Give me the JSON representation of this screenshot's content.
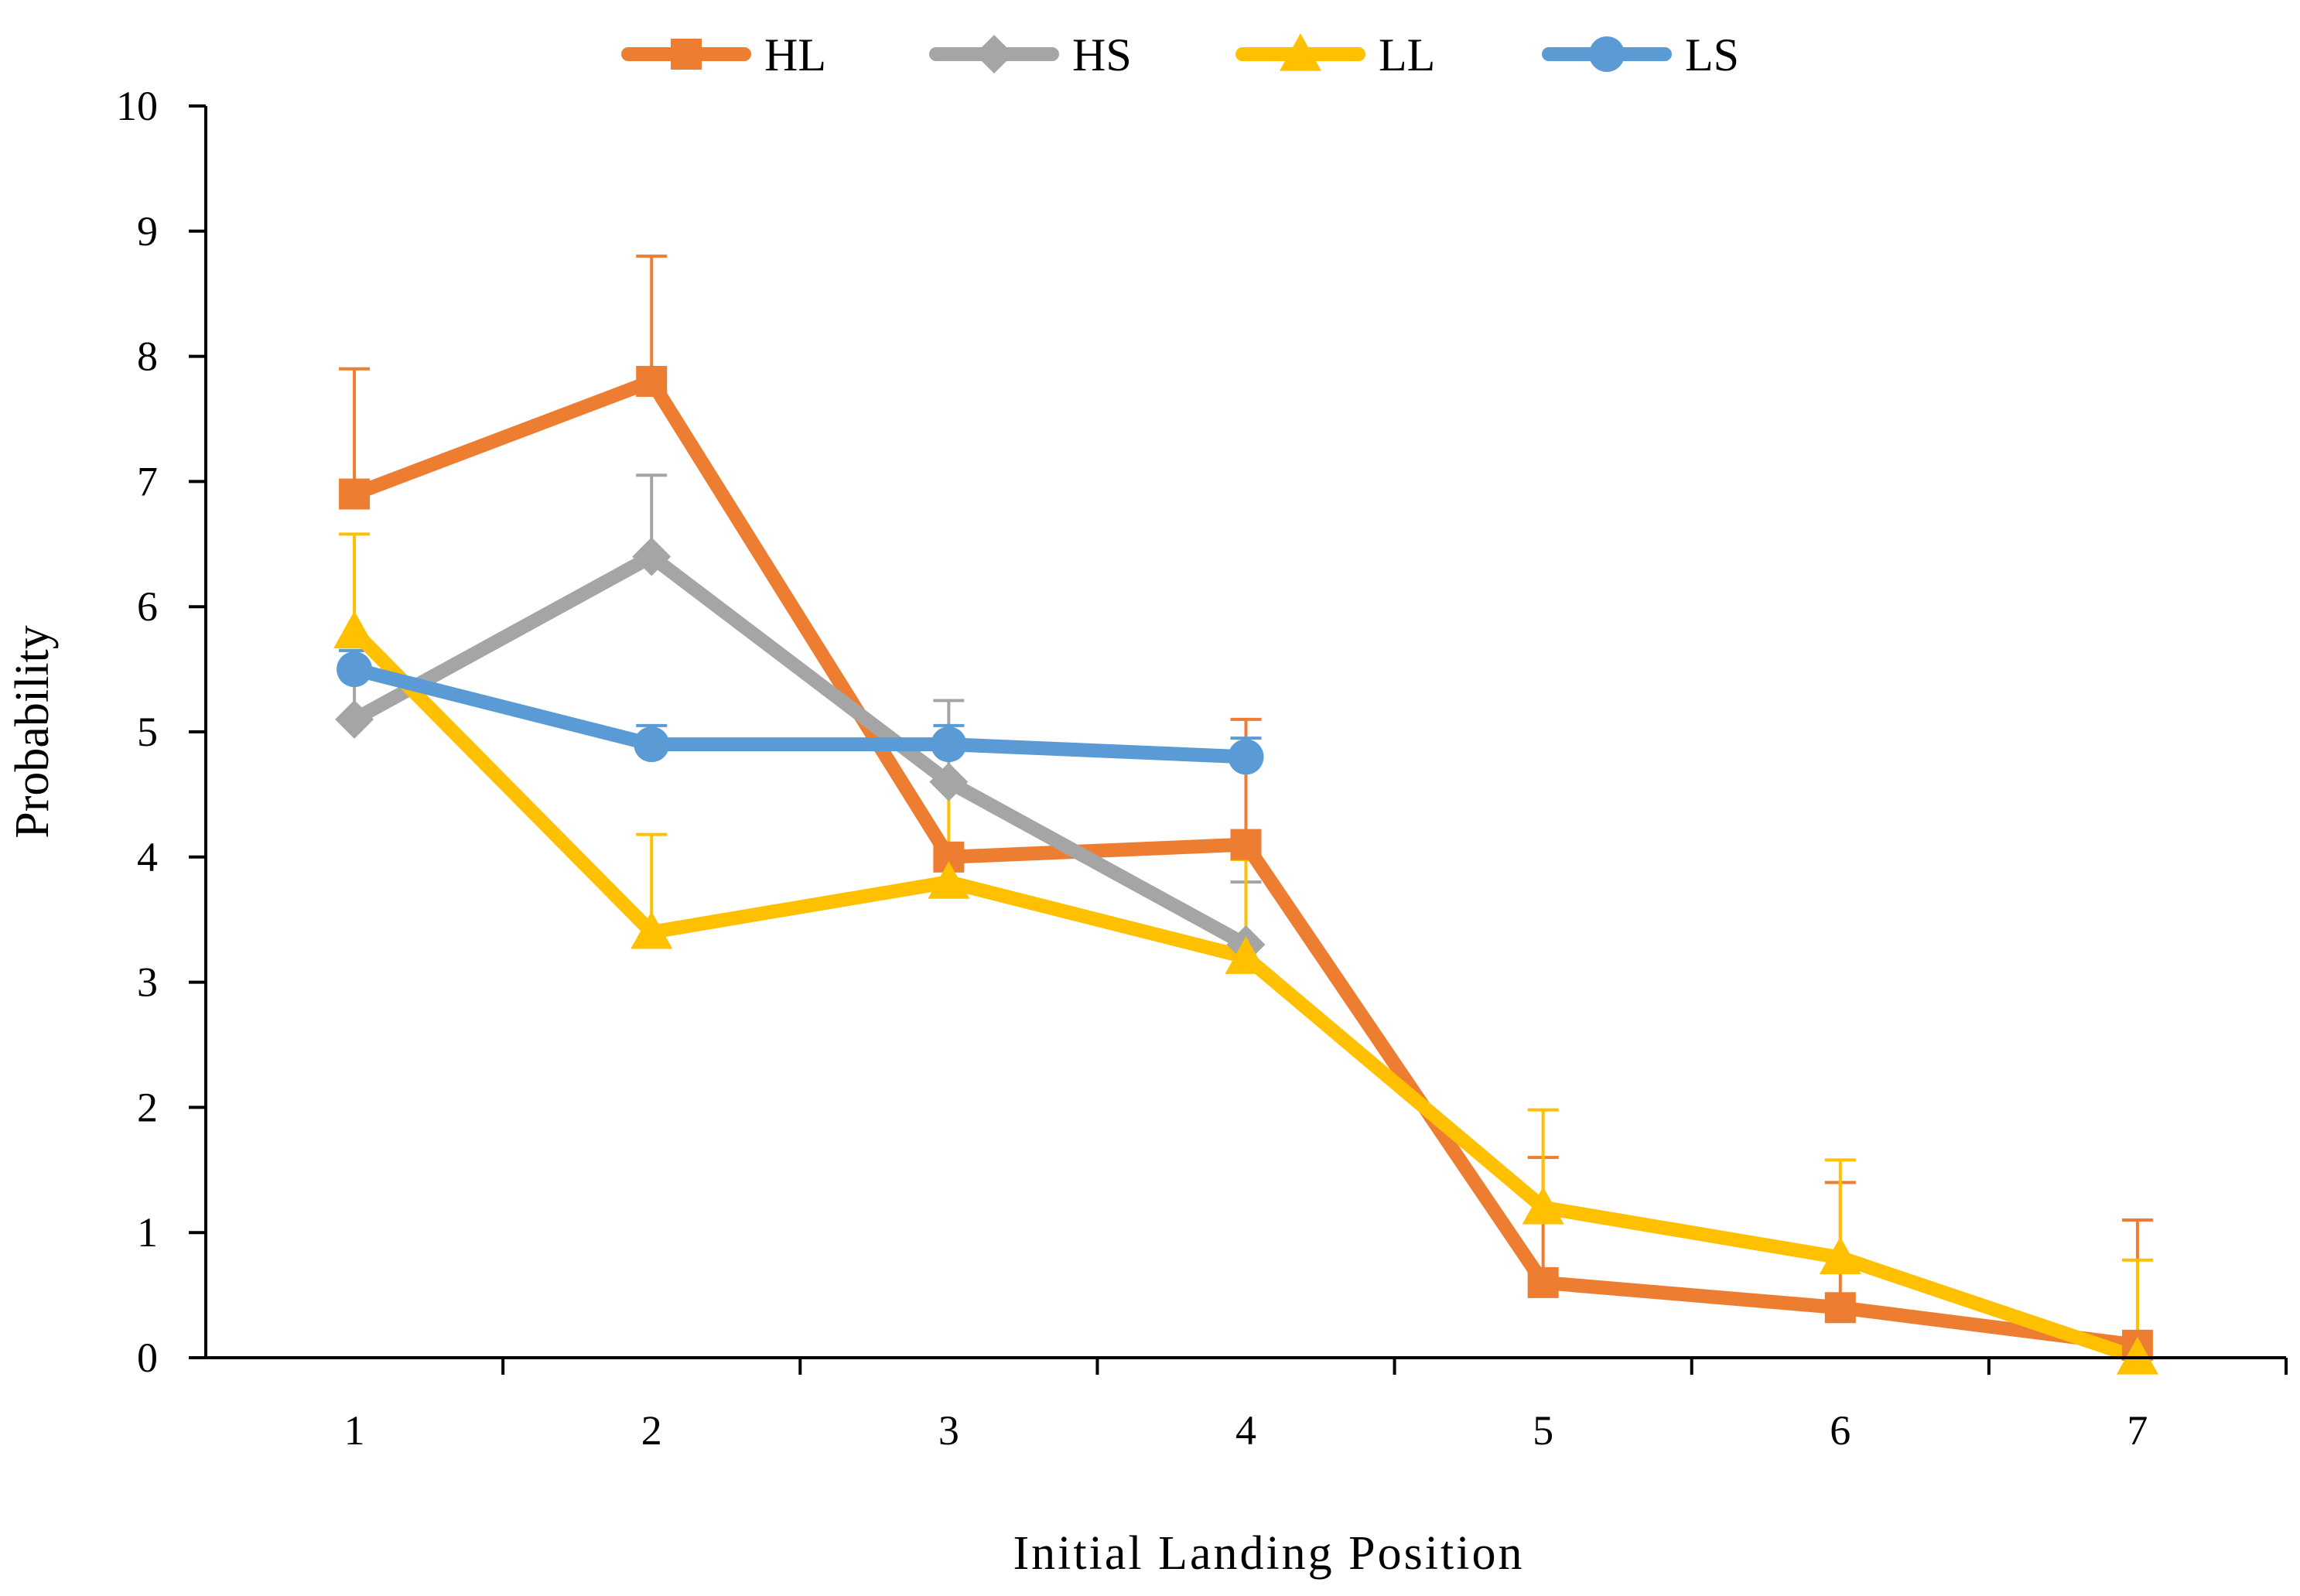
{
  "chart_data": {
    "type": "line",
    "title": "",
    "xlabel": "Initial Landing Position",
    "ylabel": "Probability",
    "categories": [
      "1",
      "2",
      "3",
      "4",
      "5",
      "6",
      "7"
    ],
    "yticks": [
      "0",
      "1",
      "2",
      "3",
      "4",
      "5",
      "6",
      "7",
      "8",
      "9",
      "10"
    ],
    "ylim": [
      0,
      10
    ],
    "grid": false,
    "legend_position": "top",
    "series": [
      {
        "name": "HL",
        "color": "#ED7D31",
        "marker": "square",
        "values": [
          6.9,
          7.8,
          4.0,
          4.1,
          0.6,
          0.4,
          0.1
        ],
        "error_upper": [
          1.0,
          1.0,
          0.0,
          1.0,
          1.0,
          1.0,
          1.0
        ]
      },
      {
        "name": "HS",
        "color": "#A5A5A5",
        "marker": "diamond",
        "values": [
          5.1,
          6.4,
          4.6,
          3.3,
          null,
          null,
          null
        ],
        "error_upper": [
          0.55,
          0.65,
          0.65,
          0.5,
          null,
          null,
          null
        ]
      },
      {
        "name": "LL",
        "color": "#FFC000",
        "marker": "triangle",
        "values": [
          5.8,
          3.4,
          3.8,
          3.2,
          1.2,
          0.8,
          0.0
        ],
        "error_upper": [
          0.78,
          0.78,
          0.78,
          0.78,
          0.78,
          0.78,
          0.78
        ]
      },
      {
        "name": "LS",
        "color": "#5B9BD5",
        "marker": "circle",
        "values": [
          5.5,
          4.9,
          4.9,
          4.8,
          null,
          null,
          null
        ],
        "error_upper": [
          0.15,
          0.15,
          0.15,
          0.15,
          null,
          null,
          null
        ]
      }
    ]
  }
}
